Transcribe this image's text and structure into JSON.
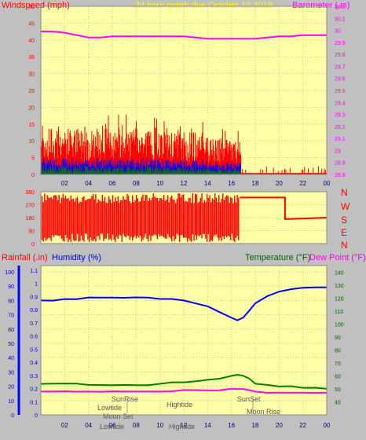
{
  "header": {
    "left_label": "Windspeed (mph)",
    "center_label": "24 hour graph due   October 12 2019",
    "right_label": "Barometer (.in)"
  },
  "bottom_header": {
    "rainfall_label": "Rainfall (.in)",
    "humidity_label": "Humidity (%)",
    "temperature_label": "Temperature (°F)",
    "dewpoint_label": "Dew Point (°F)"
  },
  "compass": [
    "N",
    "W",
    "S",
    "E",
    "N"
  ],
  "events": {
    "sunrise": "SunRise",
    "lowtide": "Lowtide",
    "moonset": "Moon Set",
    "hightide": "Hightide",
    "sunset": "SunSet",
    "moonrise": "Moon Rise"
  },
  "bottom_axis_labels": [
    "02",
    "04",
    "06",
    "08",
    "10",
    "12",
    "14",
    "16",
    "18",
    "20",
    "22",
    "00"
  ],
  "bottom_axis_overlays": [
    "Lowtide",
    "Hightide"
  ],
  "colors": {
    "panel_bg": "#ffffa8",
    "windspeed": "#ff0000",
    "wind_blue": "#0000ff",
    "wind_green": "#008000",
    "barometer": "#ff00ff",
    "direction": "#ff0000",
    "humidity": "#0000ff",
    "temperature": "#008000",
    "dewpoint": "#ff00ff",
    "rainfall": "#0000ff",
    "header_text": "#ffff00"
  },
  "chart_data": [
    {
      "type": "line",
      "title": "24 hour graph due   October 12 2019",
      "x_ticks": [
        "02",
        "04",
        "06",
        "08",
        "10",
        "12",
        "14",
        "16",
        "18",
        "20",
        "22",
        "00"
      ],
      "ylabel": "Windspeed (mph)",
      "ylim": [
        0,
        50
      ],
      "y_ticks": [
        0,
        5,
        10,
        15,
        20,
        25,
        30,
        35,
        40,
        45,
        50
      ],
      "y2label": "Barometer (.in)",
      "y2lim": [
        28.8,
        30.2
      ],
      "y2_ticks": [
        "28.8",
        "28.9",
        "29",
        "29.1",
        "29.2",
        "29.3",
        "29.4",
        "29.5",
        "29.6",
        "29.7",
        "29.8",
        "29.9",
        "30",
        "30.1",
        "30.2"
      ],
      "series": [
        {
          "name": "Barometer (.in)",
          "axis": "y2",
          "x": [
            0,
            1,
            2,
            3,
            4,
            5,
            6,
            7,
            8,
            9,
            10,
            11,
            12,
            13,
            14,
            15,
            16,
            17,
            18,
            19,
            20,
            21,
            22,
            23,
            24
          ],
          "values": [
            29.99,
            29.99,
            29.98,
            29.96,
            29.94,
            29.94,
            29.95,
            29.95,
            29.95,
            29.95,
            29.95,
            29.95,
            29.95,
            29.94,
            29.93,
            29.93,
            29.93,
            29.93,
            29.93,
            29.94,
            29.95,
            29.95,
            29.96,
            29.96,
            29.96
          ]
        }
      ]
    },
    {
      "type": "line",
      "ylabel": "",
      "ylim": [
        0,
        360
      ],
      "y_ticks": [
        0,
        90,
        180,
        270,
        360
      ],
      "y_right_labels": [
        "N",
        "W",
        "S",
        "E",
        "N"
      ]
    },
    {
      "type": "line",
      "ylim_rain": [
        0,
        1.1
      ],
      "y_rain_ticks": [
        "0",
        "0.1",
        "0.2",
        "0.3",
        "0.4",
        "0.5",
        "0.6",
        "0.7",
        "0.8",
        "0.9",
        "1",
        "1.1"
      ],
      "ylim_humidity": [
        0,
        100
      ],
      "y_humidity_ticks": [
        0,
        10,
        20,
        30,
        40,
        50,
        60,
        70,
        80,
        90,
        100
      ],
      "ylim_temp": [
        30,
        145
      ],
      "y_temp_ticks": [
        40,
        50,
        60,
        70,
        80,
        90,
        100,
        110,
        120,
        130,
        140
      ],
      "series": [
        {
          "name": "Humidity (%)",
          "x": [
            0,
            1,
            2,
            3,
            4,
            5,
            6,
            7,
            8,
            9,
            10,
            11,
            12,
            13,
            14,
            15,
            16,
            16.5,
            17,
            17.5,
            18,
            19,
            20,
            21,
            22,
            23,
            24
          ],
          "values": [
            80,
            80,
            81,
            81,
            82,
            82,
            82,
            82,
            82,
            82,
            81,
            81,
            80,
            78,
            76,
            72,
            68,
            66,
            68,
            73,
            78,
            83,
            86,
            88,
            89,
            89,
            89
          ]
        },
        {
          "name": "Temperature (°F)",
          "x": [
            0,
            1,
            2,
            3,
            4,
            5,
            6,
            7,
            8,
            9,
            10,
            11,
            12,
            13,
            14,
            15,
            16,
            16.5,
            17,
            17.5,
            18,
            19,
            20,
            21,
            22,
            23,
            24
          ],
          "values": [
            54,
            54,
            54,
            54,
            53,
            53,
            53,
            53,
            53,
            53,
            54,
            55,
            55,
            56,
            57,
            58,
            60,
            61,
            60,
            58,
            54,
            53,
            52,
            52,
            51,
            51,
            50
          ]
        },
        {
          "name": "Dew Point (°F)",
          "x": [
            0,
            1,
            2,
            3,
            4,
            5,
            6,
            7,
            8,
            9,
            10,
            11,
            12,
            13,
            14,
            15,
            16,
            16.5,
            17,
            17.5,
            18,
            19,
            20,
            21,
            22,
            23,
            24
          ],
          "values": [
            48,
            48,
            48,
            48,
            48,
            48,
            48,
            48,
            48,
            48,
            48,
            48,
            49,
            49,
            49,
            49,
            50,
            50,
            50,
            49,
            48,
            47,
            47,
            47,
            47,
            47,
            47
          ]
        }
      ]
    }
  ]
}
